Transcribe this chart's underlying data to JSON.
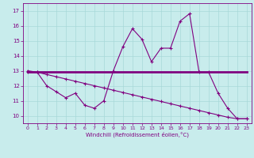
{
  "xlabel": "Windchill (Refroidissement éolien,°C)",
  "background_color": "#c8ecec",
  "line_color": "#800080",
  "grid_color": "#a8d8d8",
  "xlim": [
    -0.5,
    23.5
  ],
  "ylim": [
    9.5,
    17.5
  ],
  "yticks": [
    10,
    11,
    12,
    13,
    14,
    15,
    16,
    17
  ],
  "xticks": [
    0,
    1,
    2,
    3,
    4,
    5,
    6,
    7,
    8,
    9,
    10,
    11,
    12,
    13,
    14,
    15,
    16,
    17,
    18,
    19,
    20,
    21,
    22,
    23
  ],
  "series1_x": [
    0,
    1,
    2,
    3,
    4,
    5,
    6,
    7,
    8,
    9,
    10,
    11,
    12,
    13,
    14,
    15,
    16,
    17,
    18,
    19,
    20,
    21,
    22,
    23
  ],
  "series1_y": [
    12.9,
    12.9,
    12.0,
    11.6,
    11.2,
    11.5,
    10.7,
    10.5,
    11.0,
    13.0,
    14.6,
    15.8,
    15.1,
    13.6,
    14.5,
    14.5,
    16.3,
    16.8,
    12.9,
    12.9,
    11.5,
    10.5,
    9.8,
    9.8
  ],
  "series2_x": [
    0,
    23
  ],
  "series2_y": [
    12.9,
    12.9
  ],
  "series3_x": [
    0,
    1,
    2,
    3,
    4,
    5,
    6,
    7,
    8,
    9,
    10,
    11,
    12,
    13,
    14,
    15,
    16,
    17,
    18,
    19,
    20,
    21,
    22,
    23
  ],
  "series3_y": [
    13.0,
    12.9,
    12.75,
    12.6,
    12.45,
    12.3,
    12.15,
    12.0,
    11.85,
    11.7,
    11.55,
    11.4,
    11.25,
    11.1,
    10.95,
    10.8,
    10.65,
    10.5,
    10.35,
    10.2,
    10.05,
    9.9,
    9.8,
    9.8
  ]
}
